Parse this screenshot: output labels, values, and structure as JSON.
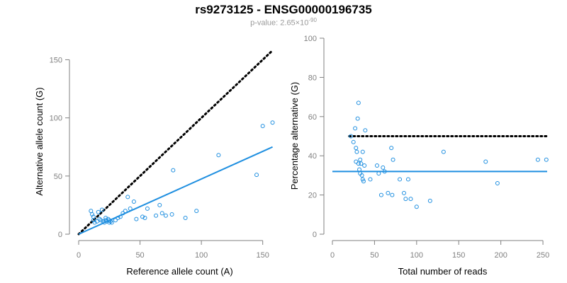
{
  "title": "rs9273125 - ENSG00000196735",
  "subtitle": {
    "prefix": "p-value: 2.65×10",
    "exponent": "-90"
  },
  "colors": {
    "points": "#1f8fe0",
    "fit": "#1f8fe0",
    "reference": "#000000",
    "axis": "#808080"
  },
  "chart_data": [
    {
      "type": "scatter",
      "xlabel": "Reference allele count (A)",
      "ylabel": "Alternative allele count (G)",
      "xlim": [
        0,
        160
      ],
      "ylim": [
        0,
        160
      ],
      "xticks": [
        0,
        50,
        100,
        150
      ],
      "yticks": [
        0,
        50,
        100,
        150
      ],
      "points": [
        [
          10,
          20
        ],
        [
          11,
          17
        ],
        [
          12,
          15
        ],
        [
          12,
          12
        ],
        [
          13,
          10
        ],
        [
          15,
          11
        ],
        [
          16,
          19
        ],
        [
          17,
          13
        ],
        [
          18,
          12
        ],
        [
          19,
          21
        ],
        [
          20,
          11
        ],
        [
          21,
          10
        ],
        [
          22,
          14
        ],
        [
          22,
          12
        ],
        [
          23,
          11
        ],
        [
          24,
          13
        ],
        [
          25,
          12
        ],
        [
          25,
          10
        ],
        [
          26,
          11
        ],
        [
          27,
          10
        ],
        [
          30,
          12
        ],
        [
          32,
          14
        ],
        [
          34,
          15
        ],
        [
          36,
          18
        ],
        [
          38,
          20
        ],
        [
          40,
          32
        ],
        [
          42,
          22
        ],
        [
          45,
          28
        ],
        [
          47,
          13
        ],
        [
          52,
          15
        ],
        [
          54,
          14
        ],
        [
          56,
          22
        ],
        [
          63,
          16
        ],
        [
          66,
          25
        ],
        [
          68,
          18
        ],
        [
          71,
          16
        ],
        [
          76,
          17
        ],
        [
          77,
          55
        ],
        [
          87,
          14
        ],
        [
          96,
          20
        ],
        [
          114,
          68
        ],
        [
          145,
          51
        ],
        [
          150,
          93
        ],
        [
          158,
          96
        ]
      ],
      "reference_line": {
        "style": "dotted",
        "slope": 1,
        "intercept": 0
      },
      "fit_line": {
        "style": "solid",
        "x": [
          0,
          158
        ],
        "y": [
          0,
          75
        ]
      }
    },
    {
      "type": "scatter",
      "xlabel": "Total number of reads",
      "ylabel": "Percentage alternative (G)",
      "xlim": [
        0,
        255
      ],
      "ylim": [
        0,
        100
      ],
      "xticks": [
        0,
        50,
        100,
        150,
        200,
        250
      ],
      "yticks": [
        0,
        20,
        40,
        60,
        80,
        100
      ],
      "points": [
        [
          22,
          50
        ],
        [
          25,
          47
        ],
        [
          27,
          54
        ],
        [
          28,
          44
        ],
        [
          28,
          37
        ],
        [
          29,
          42
        ],
        [
          30,
          59
        ],
        [
          31,
          67
        ],
        [
          31,
          36
        ],
        [
          32,
          33
        ],
        [
          33,
          31
        ],
        [
          33,
          38
        ],
        [
          34,
          36
        ],
        [
          35,
          30
        ],
        [
          36,
          42
        ],
        [
          36,
          28
        ],
        [
          37,
          27
        ],
        [
          38,
          35
        ],
        [
          39,
          53
        ],
        [
          45,
          28
        ],
        [
          53,
          35
        ],
        [
          55,
          31
        ],
        [
          58,
          20
        ],
        [
          60,
          34
        ],
        [
          62,
          32
        ],
        [
          66,
          21
        ],
        [
          70,
          44
        ],
        [
          71,
          20
        ],
        [
          72,
          38
        ],
        [
          80,
          28
        ],
        [
          85,
          21
        ],
        [
          87,
          18
        ],
        [
          90,
          28
        ],
        [
          93,
          18
        ],
        [
          100,
          14
        ],
        [
          116,
          17
        ],
        [
          132,
          42
        ],
        [
          182,
          37
        ],
        [
          196,
          26
        ],
        [
          244,
          38
        ],
        [
          254,
          38
        ]
      ],
      "reference_line": {
        "style": "dotted",
        "y": 50
      },
      "fit_line": {
        "style": "solid",
        "y": 32
      }
    }
  ]
}
